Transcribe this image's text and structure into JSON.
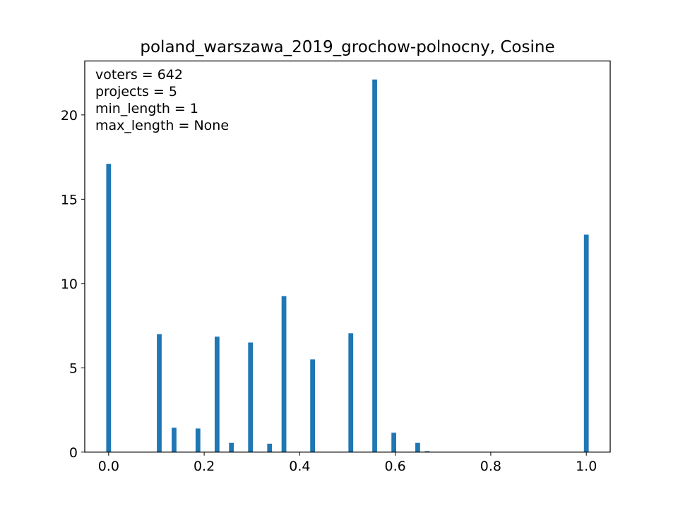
{
  "chart_data": {
    "type": "bar",
    "title": "poland_warszawa_2019_grochow-polnocny, Cosine",
    "xlabel": "",
    "ylabel": "",
    "xlim": [
      -0.05,
      1.05
    ],
    "ylim": [
      0,
      23.2
    ],
    "xticks": [
      "0.0",
      "0.2",
      "0.4",
      "0.6",
      "0.8",
      "1.0"
    ],
    "yticks": [
      "0",
      "5",
      "10",
      "15",
      "20"
    ],
    "bar_width": 0.01,
    "bar_color": "#1f77b4",
    "grid": false,
    "annotations": [
      "voters = 642",
      "projects = 5",
      "min_length = 1",
      "max_length = None"
    ],
    "bars": [
      {
        "x": 0.0,
        "value": 17.1
      },
      {
        "x": 0.106,
        "value": 7.0
      },
      {
        "x": 0.137,
        "value": 1.45
      },
      {
        "x": 0.187,
        "value": 1.4
      },
      {
        "x": 0.227,
        "value": 6.85
      },
      {
        "x": 0.257,
        "value": 0.55
      },
      {
        "x": 0.297,
        "value": 6.5
      },
      {
        "x": 0.337,
        "value": 0.5
      },
      {
        "x": 0.367,
        "value": 9.25
      },
      {
        "x": 0.427,
        "value": 5.5
      },
      {
        "x": 0.507,
        "value": 7.05
      },
      {
        "x": 0.557,
        "value": 22.1
      },
      {
        "x": 0.597,
        "value": 1.15
      },
      {
        "x": 0.647,
        "value": 0.55
      },
      {
        "x": 0.667,
        "value": 0.06
      },
      {
        "x": 1.0,
        "value": 12.9
      }
    ]
  }
}
